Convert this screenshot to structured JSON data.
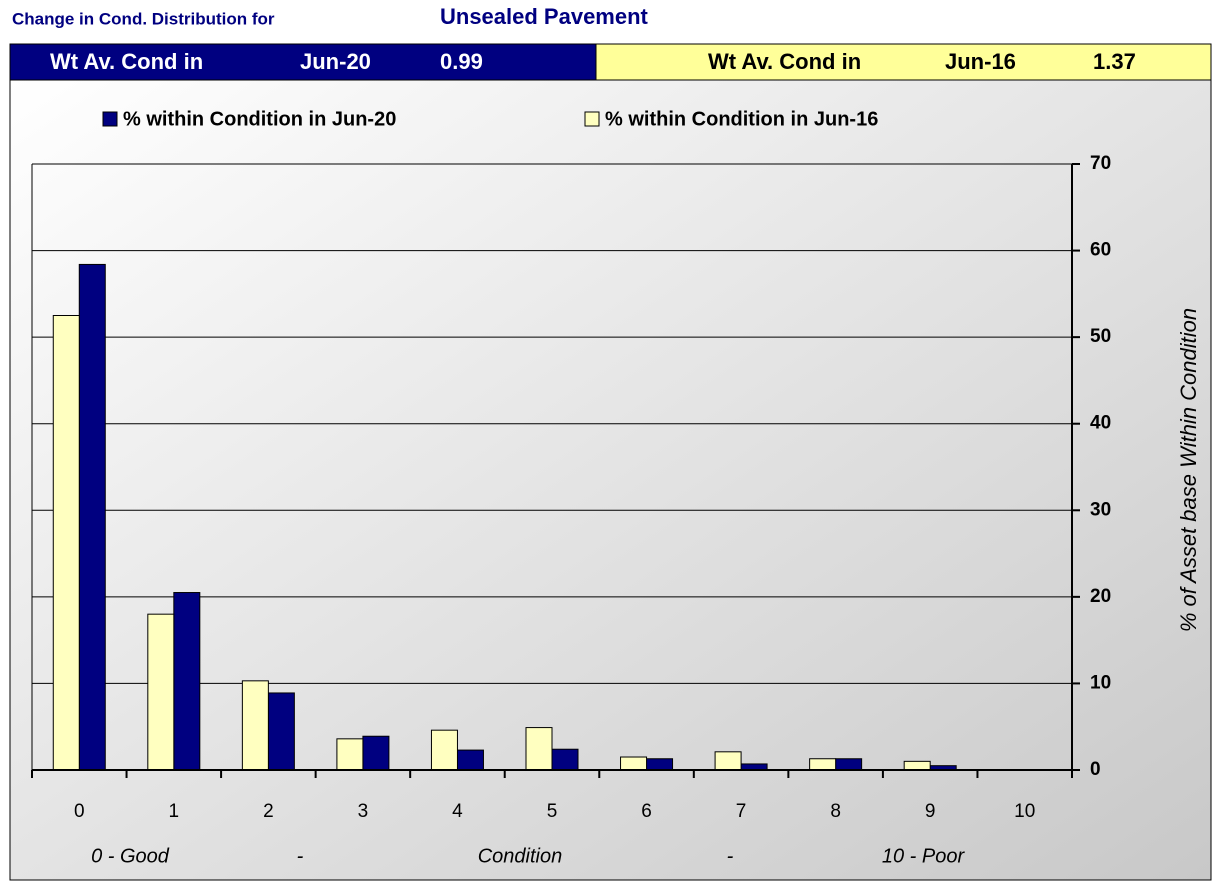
{
  "header": {
    "title": "Change in Cond. Distribution for",
    "subject": "Unsealed Pavement"
  },
  "summary": [
    {
      "label": "Wt Av. Cond in",
      "date": "Jun-20",
      "value": 0.99
    },
    {
      "label": "Wt Av. Cond in",
      "date": "Jun-16",
      "value": 1.37
    }
  ],
  "chart_data": {
    "type": "bar",
    "categories": [
      "0",
      "1",
      "2",
      "3",
      "4",
      "5",
      "6",
      "7",
      "8",
      "9",
      "10"
    ],
    "x_sublabels": [
      "0 - Good",
      "-",
      "Condition",
      "-",
      "10 - Poor"
    ],
    "y_label": "% of Asset base Within Condition",
    "series": [
      {
        "name": "% within Condition in Jun-20",
        "color": "#000080",
        "values": [
          58.4,
          20.5,
          8.9,
          3.9,
          2.3,
          2.4,
          1.3,
          0.7,
          1.3,
          0.5,
          0
        ]
      },
      {
        "name": "% within Condition in Jun-16",
        "color": "#ffffc0",
        "values": [
          52.5,
          18,
          10.3,
          3.6,
          4.6,
          4.9,
          1.5,
          2.1,
          1.3,
          1.0,
          0
        ]
      }
    ],
    "ylim": [
      0,
      70
    ],
    "yticks": [
      0,
      10,
      20,
      30,
      40,
      50,
      60,
      70
    ],
    "grid": true
  }
}
